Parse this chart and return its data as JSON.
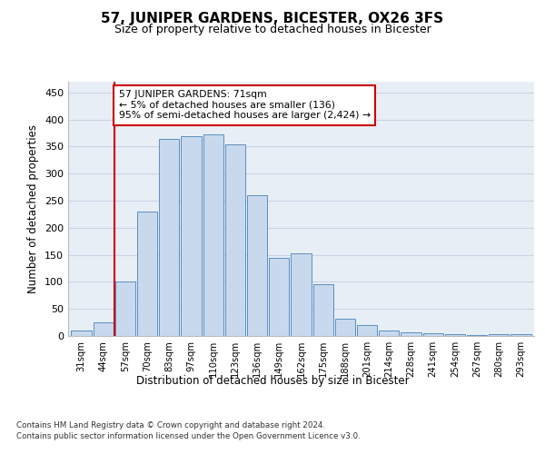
{
  "title": "57, JUNIPER GARDENS, BICESTER, OX26 3FS",
  "subtitle": "Size of property relative to detached houses in Bicester",
  "xlabel": "Distribution of detached houses by size in Bicester",
  "ylabel": "Number of detached properties",
  "categories": [
    "31sqm",
    "44sqm",
    "57sqm",
    "70sqm",
    "83sqm",
    "97sqm",
    "110sqm",
    "123sqm",
    "136sqm",
    "149sqm",
    "162sqm",
    "175sqm",
    "188sqm",
    "201sqm",
    "214sqm",
    "228sqm",
    "241sqm",
    "254sqm",
    "267sqm",
    "280sqm",
    "293sqm"
  ],
  "values": [
    10,
    26,
    101,
    230,
    365,
    370,
    373,
    355,
    260,
    145,
    153,
    96,
    32,
    20,
    10,
    6,
    5,
    4,
    2,
    4,
    3
  ],
  "bar_color": "#c9d9ed",
  "bar_edge_color": "#5a8fc2",
  "grid_color": "#c8d4e5",
  "background_color": "#e8eef5",
  "annotation_box_text": "57 JUNIPER GARDENS: 71sqm\n← 5% of detached houses are smaller (136)\n95% of semi-detached houses are larger (2,424) →",
  "annotation_box_color": "#cc0000",
  "ylim": [
    0,
    470
  ],
  "yticks": [
    0,
    50,
    100,
    150,
    200,
    250,
    300,
    350,
    400,
    450
  ],
  "footer_line1": "Contains HM Land Registry data © Crown copyright and database right 2024.",
  "footer_line2": "Contains public sector information licensed under the Open Government Licence v3.0."
}
